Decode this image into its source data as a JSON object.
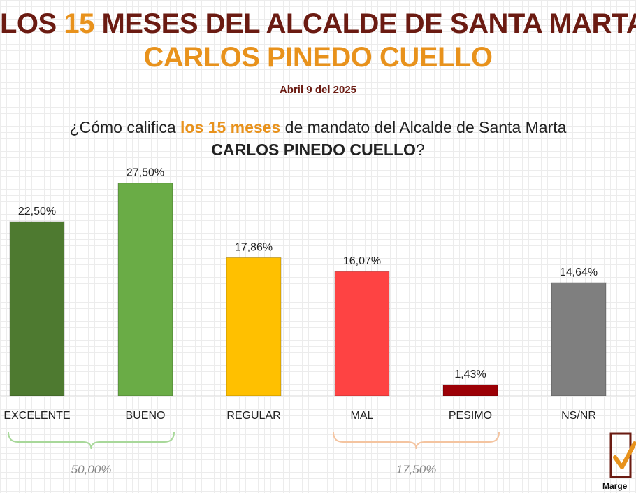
{
  "header": {
    "title_pre": "LOS ",
    "title_num": "15",
    "title_post": " MESES DEL ALCALDE DE SANTA MARTA",
    "subtitle": "CARLOS PINEDO CUELLO",
    "date": "Abril 9 del 2025"
  },
  "question": {
    "pre": "¿Cómo califica ",
    "highlight": "los 15 meses",
    "post": " de mandato del Alcalde de Santa Marta",
    "bold": "CARLOS PINEDO CUELLO",
    "end": "?"
  },
  "chart_data": {
    "type": "bar",
    "categories": [
      "EXCELENTE",
      "BUENO",
      "REGULAR",
      "MAL",
      "PESIMO",
      "NS/NR"
    ],
    "values": [
      22.5,
      27.5,
      17.86,
      16.07,
      1.43,
      14.64
    ],
    "data_labels": [
      "22,50%",
      "27,50%",
      "17,86%",
      "16,07%",
      "1,43%",
      "14,64%"
    ],
    "colors": [
      "#4e7a30",
      "#6aac46",
      "#ffc000",
      "#fe4343",
      "#9c0006",
      "#7f7f7f"
    ],
    "groups": [
      {
        "label": "50,00%",
        "color": "#a8d89a",
        "from": 0,
        "to": 1
      },
      {
        "label": "17,50%",
        "color": "#f4c4a0",
        "from": 3,
        "to": 4
      }
    ],
    "ylim": [
      0,
      30
    ]
  },
  "logo": {
    "text": "Marge"
  }
}
